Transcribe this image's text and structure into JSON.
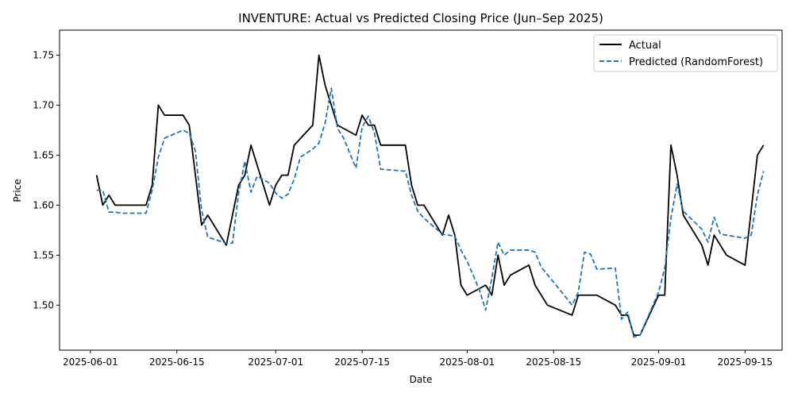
{
  "chart_data": {
    "type": "line",
    "title": "INVENTURE: Actual vs Predicted Closing Price (Jun–Sep 2025)",
    "xlabel": "Date",
    "ylabel": "Price",
    "legend_position": "top-right",
    "grid": false,
    "xlim": [
      "2025-05-27",
      "2025-09-21"
    ],
    "ylim": [
      1.455,
      1.775
    ],
    "x_ticks": [
      "2025-06-01",
      "2025-06-15",
      "2025-07-01",
      "2025-07-15",
      "2025-08-01",
      "2025-08-15",
      "2025-09-01",
      "2025-09-15"
    ],
    "y_ticks": [
      "1.50",
      "1.55",
      "1.60",
      "1.65",
      "1.70",
      "1.75"
    ],
    "series": [
      {
        "name": "Actual",
        "color": "#000000",
        "style": "solid",
        "points": [
          [
            "2025-06-02",
            1.63
          ],
          [
            "2025-06-03",
            1.6
          ],
          [
            "2025-06-04",
            1.61
          ],
          [
            "2025-06-05",
            1.6
          ],
          [
            "2025-06-09",
            1.6
          ],
          [
            "2025-06-10",
            1.6
          ],
          [
            "2025-06-11",
            1.62
          ],
          [
            "2025-06-12",
            1.7
          ],
          [
            "2025-06-13",
            1.69
          ],
          [
            "2025-06-16",
            1.69
          ],
          [
            "2025-06-17",
            1.68
          ],
          [
            "2025-06-19",
            1.58
          ],
          [
            "2025-06-20",
            1.59
          ],
          [
            "2025-06-23",
            1.56
          ],
          [
            "2025-06-25",
            1.62
          ],
          [
            "2025-06-26",
            1.63
          ],
          [
            "2025-06-27",
            1.66
          ],
          [
            "2025-06-30",
            1.6
          ],
          [
            "2025-07-01",
            1.62
          ],
          [
            "2025-07-02",
            1.63
          ],
          [
            "2025-07-03",
            1.63
          ],
          [
            "2025-07-04",
            1.66
          ],
          [
            "2025-07-07",
            1.68
          ],
          [
            "2025-07-08",
            1.75
          ],
          [
            "2025-07-09",
            1.72
          ],
          [
            "2025-07-11",
            1.68
          ],
          [
            "2025-07-14",
            1.67
          ],
          [
            "2025-07-15",
            1.69
          ],
          [
            "2025-07-16",
            1.68
          ],
          [
            "2025-07-17",
            1.68
          ],
          [
            "2025-07-18",
            1.66
          ],
          [
            "2025-07-22",
            1.66
          ],
          [
            "2025-07-23",
            1.62
          ],
          [
            "2025-07-24",
            1.6
          ],
          [
            "2025-07-25",
            1.6
          ],
          [
            "2025-07-28",
            1.57
          ],
          [
            "2025-07-29",
            1.59
          ],
          [
            "2025-07-30",
            1.57
          ],
          [
            "2025-07-31",
            1.52
          ],
          [
            "2025-08-01",
            1.51
          ],
          [
            "2025-08-04",
            1.52
          ],
          [
            "2025-08-05",
            1.51
          ],
          [
            "2025-08-06",
            1.55
          ],
          [
            "2025-08-07",
            1.52
          ],
          [
            "2025-08-08",
            1.53
          ],
          [
            "2025-08-11",
            1.54
          ],
          [
            "2025-08-12",
            1.52
          ],
          [
            "2025-08-14",
            1.5
          ],
          [
            "2025-08-18",
            1.49
          ],
          [
            "2025-08-19",
            1.51
          ],
          [
            "2025-08-22",
            1.51
          ],
          [
            "2025-08-25",
            1.5
          ],
          [
            "2025-08-26",
            1.49
          ],
          [
            "2025-08-27",
            1.49
          ],
          [
            "2025-08-28",
            1.47
          ],
          [
            "2025-08-29",
            1.47
          ],
          [
            "2025-09-01",
            1.51
          ],
          [
            "2025-09-02",
            1.51
          ],
          [
            "2025-09-03",
            1.66
          ],
          [
            "2025-09-04",
            1.63
          ],
          [
            "2025-09-05",
            1.59
          ],
          [
            "2025-09-08",
            1.56
          ],
          [
            "2025-09-09",
            1.54
          ],
          [
            "2025-09-10",
            1.57
          ],
          [
            "2025-09-12",
            1.55
          ],
          [
            "2025-09-15",
            1.54
          ],
          [
            "2025-09-17",
            1.65
          ],
          [
            "2025-09-18",
            1.66
          ]
        ]
      },
      {
        "name": "Predicted (RandomForest)",
        "color": "#1f77b4",
        "style": "dashed",
        "points": [
          [
            "2025-06-02",
            1.615
          ],
          [
            "2025-06-03",
            1.615
          ],
          [
            "2025-06-04",
            1.593
          ],
          [
            "2025-06-05",
            1.593
          ],
          [
            "2025-06-06",
            1.592
          ],
          [
            "2025-06-10",
            1.592
          ],
          [
            "2025-06-11",
            1.615
          ],
          [
            "2025-06-12",
            1.648
          ],
          [
            "2025-06-13",
            1.667
          ],
          [
            "2025-06-16",
            1.675
          ],
          [
            "2025-06-17",
            1.672
          ],
          [
            "2025-06-18",
            1.654
          ],
          [
            "2025-06-19",
            1.595
          ],
          [
            "2025-06-20",
            1.568
          ],
          [
            "2025-06-23",
            1.562
          ],
          [
            "2025-06-24",
            1.562
          ],
          [
            "2025-06-25",
            1.612
          ],
          [
            "2025-06-26",
            1.644
          ],
          [
            "2025-06-27",
            1.613
          ],
          [
            "2025-06-28",
            1.629
          ],
          [
            "2025-06-30",
            1.622
          ],
          [
            "2025-07-01",
            1.612
          ],
          [
            "2025-07-02",
            1.607
          ],
          [
            "2025-07-03",
            1.611
          ],
          [
            "2025-07-04",
            1.626
          ],
          [
            "2025-07-05",
            1.648
          ],
          [
            "2025-07-07",
            1.656
          ],
          [
            "2025-07-08",
            1.662
          ],
          [
            "2025-07-09",
            1.682
          ],
          [
            "2025-07-10",
            1.717
          ],
          [
            "2025-07-11",
            1.677
          ],
          [
            "2025-07-12",
            1.667
          ],
          [
            "2025-07-14",
            1.637
          ],
          [
            "2025-07-15",
            1.678
          ],
          [
            "2025-07-16",
            1.689
          ],
          [
            "2025-07-17",
            1.672
          ],
          [
            "2025-07-18",
            1.636
          ],
          [
            "2025-07-22",
            1.634
          ],
          [
            "2025-07-23",
            1.61
          ],
          [
            "2025-07-24",
            1.594
          ],
          [
            "2025-07-25",
            1.587
          ],
          [
            "2025-07-28",
            1.571
          ],
          [
            "2025-07-29",
            1.57
          ],
          [
            "2025-07-30",
            1.569
          ],
          [
            "2025-07-31",
            1.555
          ],
          [
            "2025-08-01",
            1.544
          ],
          [
            "2025-08-03",
            1.515
          ],
          [
            "2025-08-04",
            1.495
          ],
          [
            "2025-08-05",
            1.527
          ],
          [
            "2025-08-06",
            1.563
          ],
          [
            "2025-08-07",
            1.55
          ],
          [
            "2025-08-08",
            1.555
          ],
          [
            "2025-08-11",
            1.555
          ],
          [
            "2025-08-12",
            1.553
          ],
          [
            "2025-08-13",
            1.538
          ],
          [
            "2025-08-15",
            1.523
          ],
          [
            "2025-08-18",
            1.5
          ],
          [
            "2025-08-19",
            1.513
          ],
          [
            "2025-08-20",
            1.553
          ],
          [
            "2025-08-21",
            1.551
          ],
          [
            "2025-08-22",
            1.536
          ],
          [
            "2025-08-25",
            1.537
          ],
          [
            "2025-08-26",
            1.486
          ],
          [
            "2025-08-27",
            1.493
          ],
          [
            "2025-08-28",
            1.468
          ],
          [
            "2025-08-29",
            1.47
          ],
          [
            "2025-09-01",
            1.513
          ],
          [
            "2025-09-02",
            1.537
          ],
          [
            "2025-09-03",
            1.587
          ],
          [
            "2025-09-04",
            1.621
          ],
          [
            "2025-09-05",
            1.594
          ],
          [
            "2025-09-08",
            1.576
          ],
          [
            "2025-09-09",
            1.563
          ],
          [
            "2025-09-10",
            1.588
          ],
          [
            "2025-09-11",
            1.571
          ],
          [
            "2025-09-15",
            1.567
          ],
          [
            "2025-09-16",
            1.57
          ],
          [
            "2025-09-17",
            1.61
          ],
          [
            "2025-09-18",
            1.634
          ]
        ]
      }
    ]
  }
}
